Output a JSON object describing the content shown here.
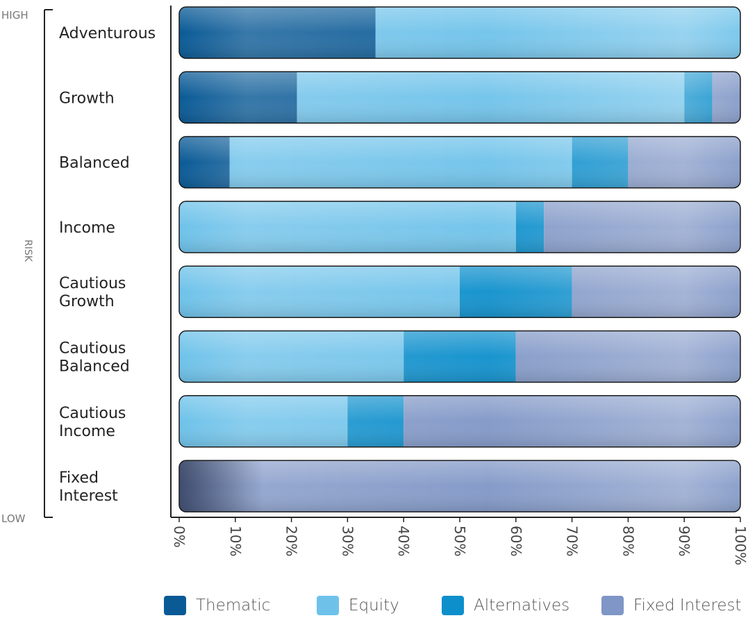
{
  "chart_data": {
    "type": "bar",
    "orientation": "horizontal",
    "stacked": true,
    "risk_label": "RISK",
    "risk_high_label": "HIGH",
    "risk_low_label": "LOW",
    "categories": [
      [
        "Adventurous"
      ],
      [
        "Growth"
      ],
      [
        "Balanced"
      ],
      [
        "Income"
      ],
      [
        "Cautious",
        "Growth"
      ],
      [
        "Cautious",
        "Balanced"
      ],
      [
        "Cautious",
        "Income"
      ],
      [
        "Fixed",
        "Interest"
      ]
    ],
    "series": [
      {
        "name": "Thematic",
        "color": "#0a5a96",
        "values": [
          35,
          21,
          9,
          0,
          0,
          0,
          0,
          0
        ]
      },
      {
        "name": "Equity",
        "color": "#6ec2ea",
        "values": [
          65,
          69,
          61,
          60,
          50,
          40,
          30,
          0
        ]
      },
      {
        "name": "Alternatives",
        "color": "#0d8fcc",
        "values": [
          0,
          5,
          10,
          5,
          20,
          20,
          10,
          0
        ]
      },
      {
        "name": "Fixed Interest",
        "color": "#7f96c6",
        "values": [
          0,
          5,
          20,
          35,
          30,
          40,
          60,
          100
        ]
      }
    ],
    "xlim": [
      0,
      100
    ],
    "xticks": [
      "0%",
      "10%",
      "20%",
      "30%",
      "40%",
      "50%",
      "60%",
      "70%",
      "80%",
      "90%",
      "100%"
    ],
    "legend_position": "bottom"
  }
}
